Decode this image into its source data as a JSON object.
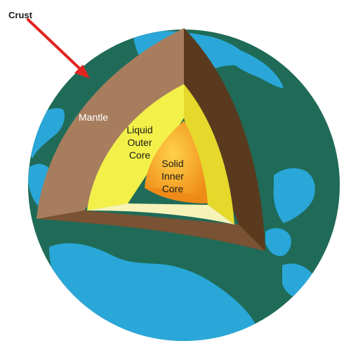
{
  "labels": {
    "crust": "Crust",
    "mantle": "Mantle",
    "outer_core": [
      "Liquid",
      "Outer",
      "Core"
    ],
    "inner_core": [
      "Solid",
      "Inner",
      "Core"
    ]
  },
  "colors": {
    "ocean": "#1f6b58",
    "land": "#2aa7d8",
    "mantle_face": "#a87d5e",
    "mantle_side": "#5a3a1f",
    "mantle_bottom": "#7a5234",
    "outer_core_face": "#f3f04a",
    "outer_core_side": "#e6d92b",
    "outer_core_bottom": "#f7f3b8",
    "inner_core": "#f29a1f",
    "arrow": "#e0251f"
  }
}
